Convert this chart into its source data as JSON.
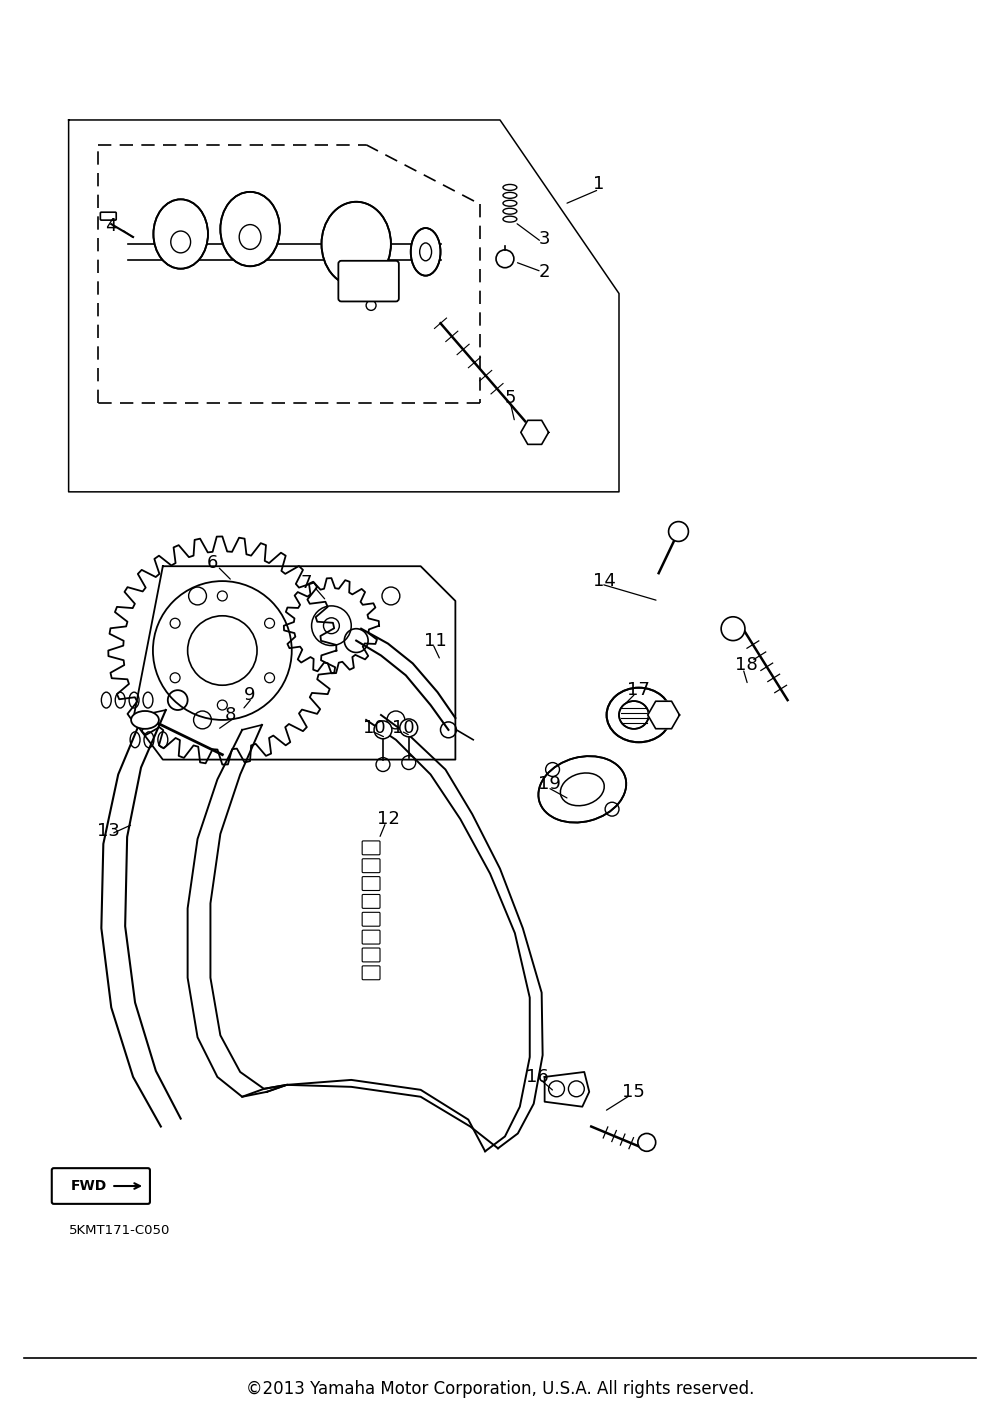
{
  "background_color": "#ffffff",
  "fig_width": 10.0,
  "fig_height": 14.23,
  "copyright_text": "©2013 Yamaha Motor Corporation, U.S.A. All rights reserved.",
  "copyright_fontsize": 12,
  "part_code": "5KMT171-C050",
  "fwd_label": "FWD",
  "line_color": "#000000",
  "text_color": "#000000",
  "label_fontsize": 13
}
